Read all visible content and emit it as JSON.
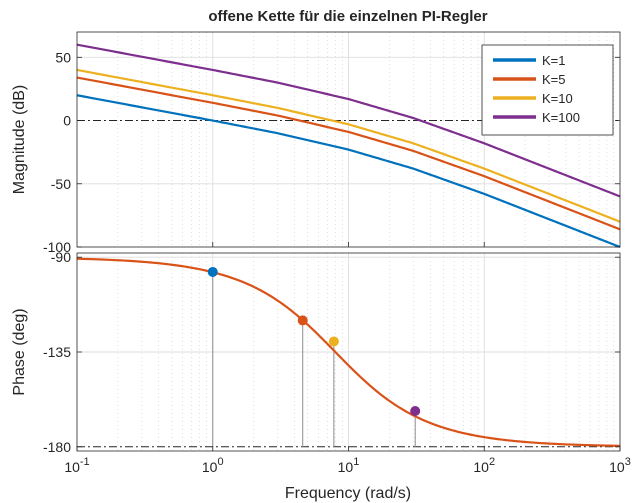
{
  "chart_data": [
    {
      "type": "line",
      "panel": "magnitude",
      "title": "offene Kette für die einzelnen PI-Regler",
      "xlabel": "",
      "ylabel": "Magnitude (dB)",
      "xscale": "log",
      "xlim": [
        0.1,
        1000
      ],
      "ylim": [
        -100,
        70
      ],
      "y_ticks": [
        "50",
        "0",
        "-50",
        "-100"
      ],
      "y_tick_values": [
        50,
        0,
        -50,
        -100
      ],
      "grid": true,
      "reference_line": {
        "y": 0,
        "style": "dash-dot"
      },
      "legend_position": "top-right",
      "series": [
        {
          "name": "K=1",
          "color": "#0072BD",
          "points": [
            [
              0.1,
              20
            ],
            [
              0.5,
              6
            ],
            [
              1,
              0
            ],
            [
              3,
              -10
            ],
            [
              10,
              -23
            ],
            [
              30,
              -38
            ],
            [
              100,
              -58
            ],
            [
              1000,
              -100
            ]
          ]
        },
        {
          "name": "K=5",
          "color": "#D95319",
          "points": [
            [
              0.1,
              34
            ],
            [
              0.5,
              20
            ],
            [
              1,
              14
            ],
            [
              3,
              4
            ],
            [
              10,
              -9
            ],
            [
              30,
              -24
            ],
            [
              100,
              -44
            ],
            [
              1000,
              -86
            ]
          ]
        },
        {
          "name": "K=10",
          "color": "#EDB120",
          "points": [
            [
              0.1,
              40
            ],
            [
              0.5,
              26
            ],
            [
              1,
              20
            ],
            [
              3,
              10
            ],
            [
              10,
              -3
            ],
            [
              30,
              -18
            ],
            [
              100,
              -38
            ],
            [
              1000,
              -80
            ]
          ]
        },
        {
          "name": "K=100",
          "color": "#7E2F8E",
          "points": [
            [
              0.1,
              60
            ],
            [
              0.5,
              46
            ],
            [
              1,
              40
            ],
            [
              3,
              30
            ],
            [
              10,
              17
            ],
            [
              30,
              2
            ],
            [
              100,
              -18
            ],
            [
              1000,
              -60
            ]
          ]
        }
      ]
    },
    {
      "type": "line",
      "panel": "phase",
      "title": "",
      "xlabel": "Frequency  (rad/s)",
      "ylabel": "Phase (deg)",
      "xscale": "log",
      "xlim": [
        0.1,
        1000
      ],
      "ylim": [
        -182,
        -88
      ],
      "x_ticks": [
        {
          "value": 0.1,
          "base": "10",
          "exp": "-1"
        },
        {
          "value": 1,
          "base": "10",
          "exp": "0"
        },
        {
          "value": 10,
          "base": "10",
          "exp": "1"
        },
        {
          "value": 100,
          "base": "10",
          "exp": "2"
        },
        {
          "value": 1000,
          "base": "10",
          "exp": "3"
        }
      ],
      "y_ticks": [
        "-90",
        "-135",
        "-180"
      ],
      "y_tick_values": [
        -90,
        -135,
        -180
      ],
      "grid": true,
      "reference_line": {
        "y": -180,
        "style": "dash-dot"
      },
      "phase_curve": {
        "description": "same for all K",
        "color": "#D95319",
        "pole": 8
      },
      "markers": [
        {
          "series": "K=1",
          "x": 1,
          "y": -97,
          "color": "#0072BD"
        },
        {
          "series": "K=5",
          "x": 4.6,
          "y": -120,
          "color": "#D95319"
        },
        {
          "series": "K=10",
          "x": 7.8,
          "y": -130,
          "color": "#EDB120"
        },
        {
          "series": "K=100",
          "x": 31,
          "y": -163,
          "color": "#7E2F8E"
        }
      ]
    }
  ]
}
